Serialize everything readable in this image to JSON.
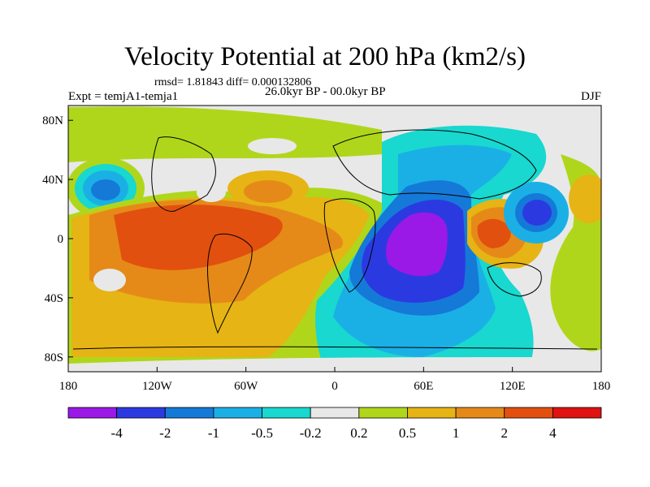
{
  "chart_data": {
    "type": "heatmap",
    "title": "Velocity Potential at 200 hPa (km2/s)",
    "stats": "rmsd= 1.81843 diff= 0.000132806",
    "experiment": "Expt = temjA1-temja1",
    "period": "26.0kyr BP - 00.0kyr BP",
    "season": "DJF",
    "x_ticks": [
      "180",
      "120W",
      "60W",
      "0",
      "60E",
      "120E",
      "180"
    ],
    "y_ticks": [
      "80N",
      "40N",
      "0",
      "40S",
      "80S"
    ],
    "colorbar": {
      "colors": [
        "#9a19e6",
        "#2b3ae0",
        "#1579d8",
        "#1ab0e6",
        "#18d8cf",
        "#e8e8e8",
        "#b0d61b",
        "#e6b414",
        "#e58a18",
        "#e2500f",
        "#e01212"
      ],
      "labels": [
        "-4",
        "-2",
        "-1",
        "-0.5",
        "-0.2",
        "0.2",
        "0.5",
        "1",
        "2",
        "4"
      ]
    },
    "features": [
      {
        "name": "indian-ocean-minimum",
        "lon": 50,
        "lat": -10,
        "level": -4
      },
      {
        "name": "atlantic-negative",
        "lon": 20,
        "lat": -20,
        "level": -2
      },
      {
        "name": "north-atlantic-negative",
        "lon": 40,
        "lat": 40,
        "level": -0.5
      },
      {
        "name": "west-pacific-negative",
        "lon": 143,
        "lat": 25,
        "level": -2
      },
      {
        "name": "north-pacific-negative",
        "lon": -155,
        "lat": 38,
        "level": -1
      },
      {
        "name": "maritime-continent-maximum",
        "lon": 105,
        "lat": 2,
        "level": 4
      },
      {
        "name": "east-pacific-maximum",
        "lon": -100,
        "lat": -5,
        "level": 4
      },
      {
        "name": "south-america-positive",
        "lon": -60,
        "lat": -10,
        "level": 2
      },
      {
        "name": "europe-positive",
        "lon": -40,
        "lat": 35,
        "level": 1
      }
    ]
  }
}
